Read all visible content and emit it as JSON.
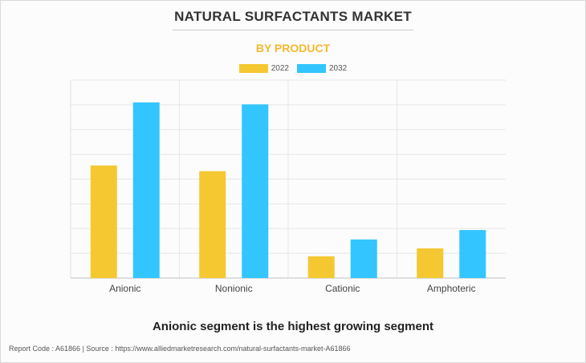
{
  "title": "NATURAL SURFACTANTS MARKET",
  "subtitle": "BY PRODUCT",
  "headline": "Anionic segment is the highest growing segment",
  "footer": "Report Code : A61866  |  Source : https://www.alliedmarketresearch.com/natural-surfactants-market-A61866",
  "colors": {
    "2022": "#f5c832",
    "2032": "#33c5ff",
    "subtitle": "#f5b82e"
  },
  "chart_data": {
    "type": "bar",
    "title": "",
    "xlabel": "",
    "ylabel": "",
    "categories": [
      "Anionic",
      "Nonionic",
      "Cationic",
      "Amphoteric"
    ],
    "series": [
      {
        "name": "2022",
        "values": [
          4.55,
          4.32,
          0.88,
          1.2
        ]
      },
      {
        "name": "2032",
        "values": [
          7.1,
          7.02,
          1.56,
          1.94
        ]
      }
    ],
    "ylim": [
      0,
      8
    ],
    "y_axis_labels": false,
    "grid": true,
    "legend": "top-center"
  }
}
